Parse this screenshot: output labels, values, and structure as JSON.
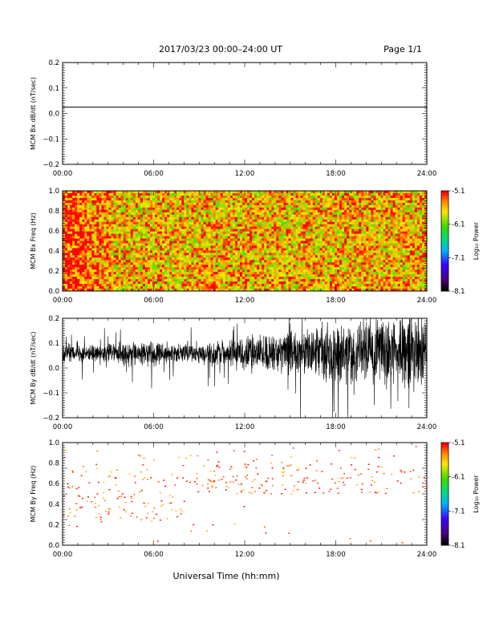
{
  "header": {
    "title": "2017/03/23  00:00–24:00 UT",
    "page": "Page 1/1"
  },
  "footer": {
    "xlabel": "Universal Time (hh:mm)"
  },
  "chart_data": [
    {
      "type": "line",
      "ylabel": "MCM Bx dB/dt (nT/sec)",
      "xlim": [
        0,
        24
      ],
      "ylim": [
        -0.2,
        0.2
      ],
      "x_ticks": [
        "00:00",
        "06:00",
        "12:00",
        "18:00",
        "24:00"
      ],
      "y_ticks": [
        "0.2",
        "0.1",
        "0.0",
        "−0.1",
        "−0.2"
      ],
      "series": [
        {
          "x": [
            0,
            24
          ],
          "y": [
            0.025,
            0.025
          ]
        }
      ]
    },
    {
      "type": "heatmap",
      "ylabel": "MCM Bx Freq (Hz)",
      "xlim": [
        0,
        24
      ],
      "ylim": [
        0,
        1.0
      ],
      "x_ticks": [
        "00:00",
        "06:00",
        "12:00",
        "18:00",
        "24:00"
      ],
      "y_ticks": [
        "1.0",
        "0.8",
        "0.6",
        "0.4",
        "0.2",
        "0.0"
      ],
      "colorbar": {
        "label": "Log₁₀ Power",
        "ticks": [
          "-5.1",
          "-6.1",
          "-7.1",
          "-8.1"
        ],
        "range": [
          -8.1,
          -5.1
        ]
      },
      "description_values": {
        "dominant_log_power": -5.6
      }
    },
    {
      "type": "line",
      "ylabel": "MCM By dB/dt (nT/sec)",
      "xlim": [
        0,
        24
      ],
      "ylim": [
        -0.2,
        0.2
      ],
      "x_ticks": [
        "00:00",
        "06:00",
        "12:00",
        "18:00",
        "24:00"
      ],
      "y_ticks": [
        "0.2",
        "0.1",
        "0.0",
        "−0.1",
        "−0.2"
      ],
      "baseline": 0.06,
      "amplitude_by_hour": [
        [
          0,
          0.05
        ],
        [
          2,
          0.04
        ],
        [
          4,
          0.05
        ],
        [
          6,
          0.06
        ],
        [
          8,
          0.04
        ],
        [
          10,
          0.05
        ],
        [
          12,
          0.08
        ],
        [
          14,
          0.09
        ],
        [
          16,
          0.11
        ],
        [
          18,
          0.13
        ],
        [
          20,
          0.15
        ],
        [
          22,
          0.16
        ],
        [
          24,
          0.17
        ]
      ]
    },
    {
      "type": "scatter",
      "ylabel": "MCM By Freq (Hz)",
      "xlim": [
        0,
        24
      ],
      "ylim": [
        0,
        1.0
      ],
      "x_ticks": [
        "00:00",
        "06:00",
        "12:00",
        "18:00",
        "24:00"
      ],
      "y_ticks": [
        "1.0",
        "0.8",
        "0.6",
        "0.4",
        "0.2",
        "0.0"
      ],
      "colorbar": {
        "label": "Log₁₀ Power",
        "ticks": [
          "-5.1",
          "-6.1",
          "-7.1",
          "-8.1"
        ],
        "range": [
          -8.1,
          -5.1
        ]
      },
      "points_note_value": -5.3
    }
  ]
}
